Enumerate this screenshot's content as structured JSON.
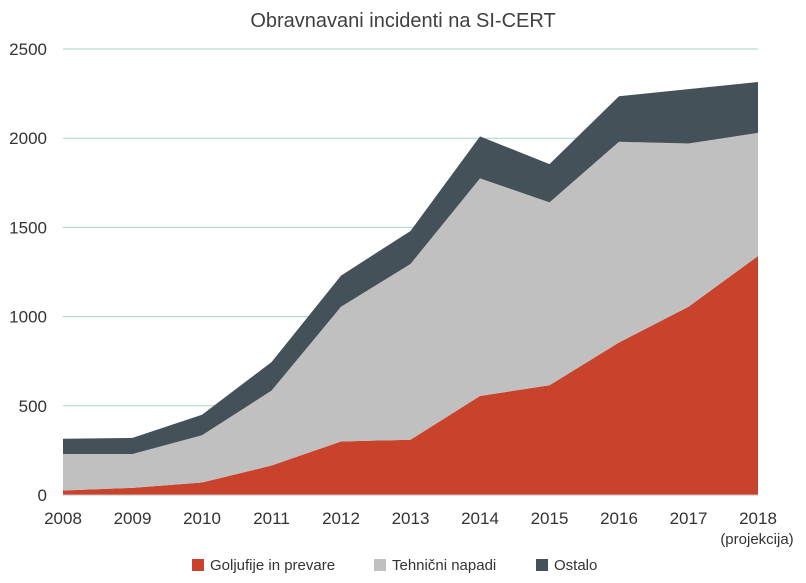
{
  "chart_data": {
    "type": "area",
    "stacked": true,
    "title": "Obravnavani incidenti na SI-CERT",
    "categories": [
      "2008",
      "2009",
      "2010",
      "2011",
      "2012",
      "2013",
      "2014",
      "2015",
      "2016",
      "2017",
      "2018"
    ],
    "category_note": "(projekcija)",
    "series": [
      {
        "name": "Goljufije in prevare",
        "color": "#c9432c",
        "values": [
          25,
          40,
          70,
          165,
          300,
          310,
          555,
          615,
          855,
          1055,
          1340
        ]
      },
      {
        "name": "Tehnični napadi",
        "color": "#c0c0c0",
        "values": [
          205,
          190,
          265,
          420,
          755,
          985,
          1220,
          1025,
          1125,
          915,
          690
        ]
      },
      {
        "name": "Ostalo",
        "color": "#455158",
        "values": [
          85,
          90,
          115,
          160,
          175,
          185,
          235,
          215,
          255,
          305,
          285
        ]
      }
    ],
    "ylim": [
      0,
      2500
    ],
    "yticks": [
      0,
      500,
      1000,
      1500,
      2000,
      2500
    ],
    "grid": true,
    "grid_color": "#9fd5c9",
    "legend": "bottom"
  }
}
